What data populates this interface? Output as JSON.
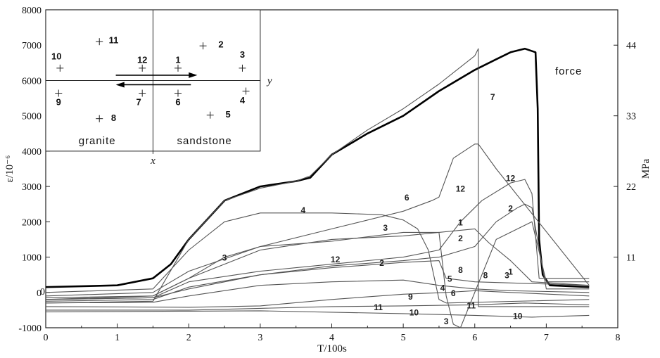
{
  "chart_data": {
    "type": "line",
    "xlabel": "T/100s",
    "ylabel": "ε/10⁻⁶",
    "y2label": "MPa",
    "xlim": [
      0,
      8
    ],
    "ylim": [
      -1000,
      8000
    ],
    "x_ticks": [
      "0",
      "1",
      "2",
      "3",
      "4",
      "5",
      "6",
      "7",
      "8"
    ],
    "y_ticks": [
      "-1000",
      "0",
      "1000",
      "2000",
      "3000",
      "4000",
      "5000",
      "6000",
      "7000",
      "8000"
    ],
    "y2_ticks": [
      {
        "label": "11",
        "y": 1000
      },
      {
        "label": "22",
        "y": 3000
      },
      {
        "label": "33",
        "y": 5000
      },
      {
        "label": "44",
        "y": 7000
      }
    ],
    "zero_label": "0",
    "force_label": "force",
    "series": [
      {
        "name": "force",
        "bold": true,
        "x": [
          0,
          1.0,
          1.5,
          1.75,
          2.0,
          2.5,
          3.0,
          3.5,
          3.7,
          4.0,
          4.5,
          5.0,
          5.5,
          6.0,
          6.3,
          6.5,
          6.7,
          6.85,
          6.88,
          6.9,
          6.95,
          7.05,
          7.6
        ],
        "y": [
          150,
          200,
          400,
          800,
          1500,
          2600,
          3000,
          3150,
          3250,
          3900,
          4500,
          5000,
          5700,
          6300,
          6600,
          6800,
          6900,
          6800,
          5200,
          1500,
          500,
          200,
          150
        ]
      },
      {
        "name": "7",
        "x": [
          0,
          1.5,
          2.0,
          2.5,
          3.0,
          3.5,
          3.7,
          4.0,
          4.5,
          5.0,
          5.5,
          6.0,
          6.05,
          6.05,
          7.6
        ],
        "y": [
          -300,
          -250,
          1500,
          2600,
          2950,
          3150,
          3300,
          3900,
          4600,
          5200,
          5900,
          6700,
          6900,
          -400,
          -400
        ]
      },
      {
        "name": "4",
        "x": [
          0,
          1.5,
          2.0,
          2.5,
          3.0,
          4.0,
          4.7,
          5.0,
          5.2,
          5.35,
          5.5,
          5.6,
          7.6
        ],
        "y": [
          0,
          100,
          1200,
          2000,
          2250,
          2250,
          2200,
          2050,
          1800,
          1200,
          -200,
          -300,
          -200
        ]
      },
      {
        "name": "6",
        "x": [
          0,
          1.5,
          2.0,
          3.0,
          4.0,
          5.0,
          5.4,
          5.5,
          5.7,
          6.0,
          6.05,
          6.3,
          7.6
        ],
        "y": [
          -100,
          0,
          600,
          1300,
          1800,
          2300,
          2600,
          2700,
          3800,
          4200,
          4200,
          3500,
          200
        ]
      },
      {
        "name": "3",
        "x": [
          0,
          1.5,
          2.0,
          2.5,
          3.0,
          4.0,
          5.0,
          5.5,
          5.6,
          5.7,
          5.8,
          6.3,
          6.8,
          7.0,
          7.6
        ],
        "y": [
          -200,
          -100,
          400,
          1000,
          1300,
          1450,
          1700,
          1700,
          -100,
          -900,
          -1000,
          1500,
          2000,
          300,
          300
        ]
      },
      {
        "name": "12",
        "x": [
          0,
          1.5,
          2.0,
          3.0,
          4.0,
          5.0,
          5.5,
          5.8,
          6.1,
          6.5,
          6.7,
          6.8,
          6.9,
          7.6
        ],
        "y": [
          -200,
          -150,
          300,
          600,
          800,
          1000,
          1200,
          2000,
          2600,
          3100,
          3200,
          2800,
          400,
          400
        ]
      },
      {
        "name": "2",
        "x": [
          0,
          1.5,
          2.0,
          3.0,
          4.0,
          5.0,
          5.5,
          6.0,
          6.3,
          6.6,
          6.7,
          6.8,
          7.0,
          7.6
        ],
        "y": [
          -250,
          -200,
          150,
          500,
          750,
          900,
          1000,
          1300,
          2000,
          2400,
          2500,
          2400,
          100,
          100
        ]
      },
      {
        "name": "1",
        "x": [
          0,
          1.5,
          2.0,
          3.0,
          4.0,
          5.0,
          5.5,
          6.0,
          6.2,
          6.5,
          6.8,
          7.6
        ],
        "y": [
          -150,
          -100,
          400,
          1200,
          1500,
          1600,
          1700,
          1800,
          1400,
          900,
          300,
          200
        ]
      },
      {
        "name": "5",
        "x": [
          0,
          1.5,
          2.0,
          3.0,
          4.0,
          5.0,
          5.5,
          5.6,
          6.0,
          7.6
        ],
        "y": [
          -200,
          -150,
          100,
          500,
          700,
          850,
          900,
          400,
          300,
          200
        ]
      },
      {
        "name": "9",
        "x": [
          0,
          2.0,
          3.0,
          4.0,
          5.0,
          5.6,
          6.0,
          6.5,
          7.6
        ],
        "y": [
          -400,
          -420,
          -380,
          -200,
          -50,
          0,
          50,
          0,
          -100
        ]
      },
      {
        "name": "11",
        "x": [
          0,
          2.0,
          3.0,
          4.0,
          5.0,
          6.0,
          6.7,
          7.6
        ],
        "y": [
          -500,
          -500,
          -450,
          -400,
          -380,
          -350,
          -300,
          -350
        ]
      },
      {
        "name": "10",
        "x": [
          0,
          1.0,
          2.0,
          3.0,
          4.0,
          5.0,
          6.0,
          6.8,
          7.6
        ],
        "y": [
          -550,
          -540,
          -530,
          -520,
          -560,
          -600,
          -650,
          -700,
          -650
        ]
      },
      {
        "name": "8",
        "x": [
          0,
          1.5,
          2.0,
          3.0,
          4.0,
          5.0,
          5.5,
          6.0,
          6.5,
          7.6
        ],
        "y": [
          -300,
          -280,
          -100,
          200,
          300,
          350,
          200,
          100,
          50,
          0
        ]
      }
    ],
    "curve_labels": [
      {
        "text": "7",
        "x": 6.25,
        "y": 5450
      },
      {
        "text": "4",
        "x": 3.6,
        "y": 2250
      },
      {
        "text": "6",
        "x": 5.05,
        "y": 2600
      },
      {
        "text": "3",
        "x": 4.75,
        "y": 1750
      },
      {
        "text": "3",
        "x": 2.5,
        "y": 900
      },
      {
        "text": "12",
        "x": 4.05,
        "y": 850
      },
      {
        "text": "2",
        "x": 4.7,
        "y": 750
      },
      {
        "text": "12",
        "x": 5.8,
        "y": 2850
      },
      {
        "text": "1",
        "x": 5.8,
        "y": 1900
      },
      {
        "text": "2",
        "x": 5.8,
        "y": 1450
      },
      {
        "text": "12",
        "x": 6.5,
        "y": 3150
      },
      {
        "text": "2",
        "x": 6.5,
        "y": 2300
      },
      {
        "text": "1",
        "x": 6.5,
        "y": 500
      },
      {
        "text": "8",
        "x": 5.8,
        "y": 550
      },
      {
        "text": "8",
        "x": 6.15,
        "y": 400
      },
      {
        "text": "3",
        "x": 6.45,
        "y": 400
      },
      {
        "text": "5",
        "x": 5.65,
        "y": 300
      },
      {
        "text": "4",
        "x": 5.55,
        "y": 50
      },
      {
        "text": "6",
        "x": 5.7,
        "y": -100
      },
      {
        "text": "9",
        "x": 5.1,
        "y": -200
      },
      {
        "text": "11",
        "x": 4.65,
        "y": -500
      },
      {
        "text": "11",
        "x": 5.95,
        "y": -450
      },
      {
        "text": "10",
        "x": 5.15,
        "y": -650
      },
      {
        "text": "10",
        "x": 6.6,
        "y": -750
      },
      {
        "text": "3",
        "x": 5.6,
        "y": -900
      }
    ]
  },
  "inset": {
    "left_label": "granite",
    "right_label": "sandstone",
    "axis_x_label": "x",
    "axis_y_label": "y",
    "gauges": [
      {
        "num": "11",
        "gx": 0.75,
        "gy": 7100,
        "lx": 0.95,
        "ly": 7050
      },
      {
        "num": "2",
        "gx": 2.2,
        "gy": 6980,
        "lx": 2.45,
        "ly": 6930
      },
      {
        "num": "10",
        "gx": 0.2,
        "gy": 6350,
        "lx": 0.15,
        "ly": 6600
      },
      {
        "num": "12",
        "gx": 1.35,
        "gy": 6350,
        "lx": 1.35,
        "ly": 6500
      },
      {
        "num": "1",
        "gx": 1.85,
        "gy": 6350,
        "lx": 1.85,
        "ly": 6500
      },
      {
        "num": "3",
        "gx": 2.75,
        "gy": 6350,
        "lx": 2.75,
        "ly": 6650
      },
      {
        "num": "9",
        "gx": 0.18,
        "gy": 5640,
        "lx": 0.18,
        "ly": 5300
      },
      {
        "num": "7",
        "gx": 1.35,
        "gy": 5640,
        "lx": 1.3,
        "ly": 5300
      },
      {
        "num": "6",
        "gx": 1.85,
        "gy": 5640,
        "lx": 1.85,
        "ly": 5300
      },
      {
        "num": "4",
        "gx": 2.8,
        "gy": 5700,
        "lx": 2.75,
        "ly": 5350
      },
      {
        "num": "5",
        "gx": 2.3,
        "gy": 5020,
        "lx": 2.55,
        "ly": 4950
      },
      {
        "num": "8",
        "gx": 0.75,
        "gy": 4920,
        "lx": 0.95,
        "ly": 4850
      }
    ]
  }
}
